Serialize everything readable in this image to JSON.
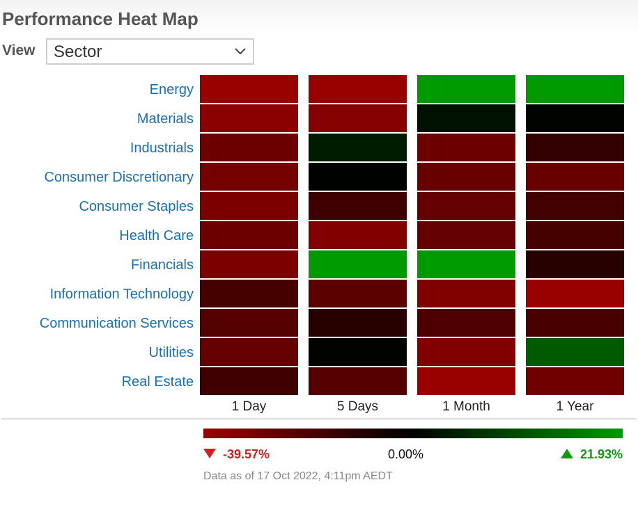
{
  "title": "Performance Heat Map",
  "view": {
    "label": "View",
    "selected": "Sector"
  },
  "chart_data": {
    "type": "heatmap",
    "rows": [
      "Energy",
      "Materials",
      "Industrials",
      "Consumer Discretionary",
      "Consumer Staples",
      "Health Care",
      "Financials",
      "Information Technology",
      "Communication Services",
      "Utilities",
      "Real Estate"
    ],
    "columns": [
      "1 Day",
      "5 Days",
      "1 Month",
      "1 Year"
    ],
    "values": [
      [
        -39.57,
        -39.57,
        21.93,
        21.93
      ],
      [
        -36.0,
        -34.5,
        2.5,
        0.5
      ],
      [
        -28.0,
        4.0,
        -28.0,
        -13.0
      ],
      [
        -30.0,
        0.3,
        -27.0,
        -27.0
      ],
      [
        -32.0,
        -16.0,
        -26.0,
        -17.0
      ],
      [
        -28.0,
        -34.0,
        -26.0,
        -18.0
      ],
      [
        -32.0,
        21.93,
        21.93,
        -10.0
      ],
      [
        -18.0,
        -24.0,
        -33.0,
        -39.57
      ],
      [
        -22.0,
        -10.0,
        -20.0,
        -19.0
      ],
      [
        -26.0,
        0.5,
        -33.0,
        13.0
      ],
      [
        -16.0,
        -22.0,
        -39.57,
        -29.0
      ]
    ],
    "color_scale": {
      "min": -39.57,
      "mid": 0.0,
      "max": 21.93,
      "min_color": "#990000",
      "mid_color": "#000000",
      "max_color": "#009900"
    },
    "legend": {
      "min_label": "-39.57%",
      "mid_label": "0.00%",
      "max_label": "21.93%"
    }
  },
  "footer": {
    "timestamp": "Data as of 17 Oct 2022, 4:11pm AEDT"
  }
}
